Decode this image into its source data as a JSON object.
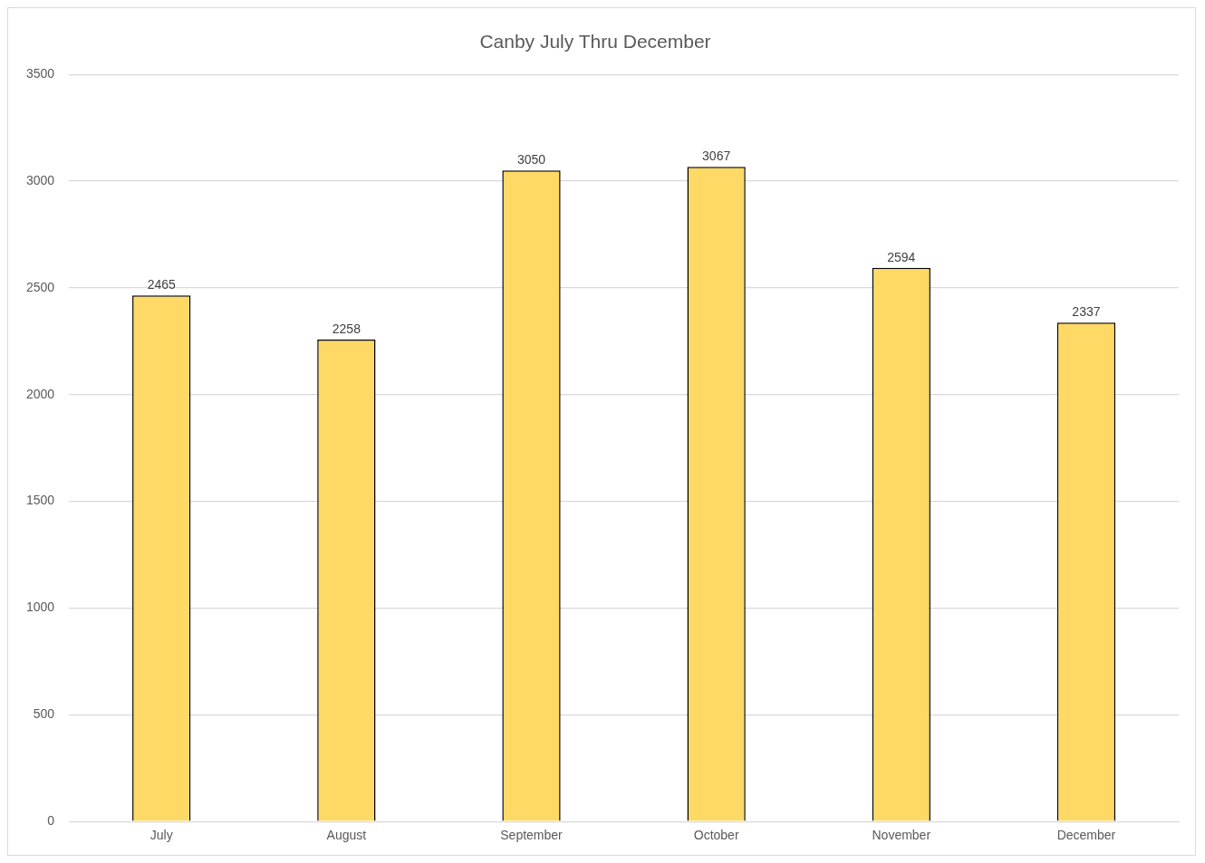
{
  "chart_data": {
    "type": "bar",
    "title": "Canby July Thru December",
    "categories": [
      "July",
      "August",
      "September",
      "October",
      "November",
      "December"
    ],
    "values": [
      2465,
      2258,
      3050,
      3067,
      2594,
      2337
    ],
    "color": "#ffd966",
    "ylim": [
      0,
      3500
    ],
    "yticks": [
      0,
      500,
      1000,
      1500,
      2000,
      2500,
      3000,
      3500
    ],
    "grid": "y",
    "data_labels": true
  }
}
